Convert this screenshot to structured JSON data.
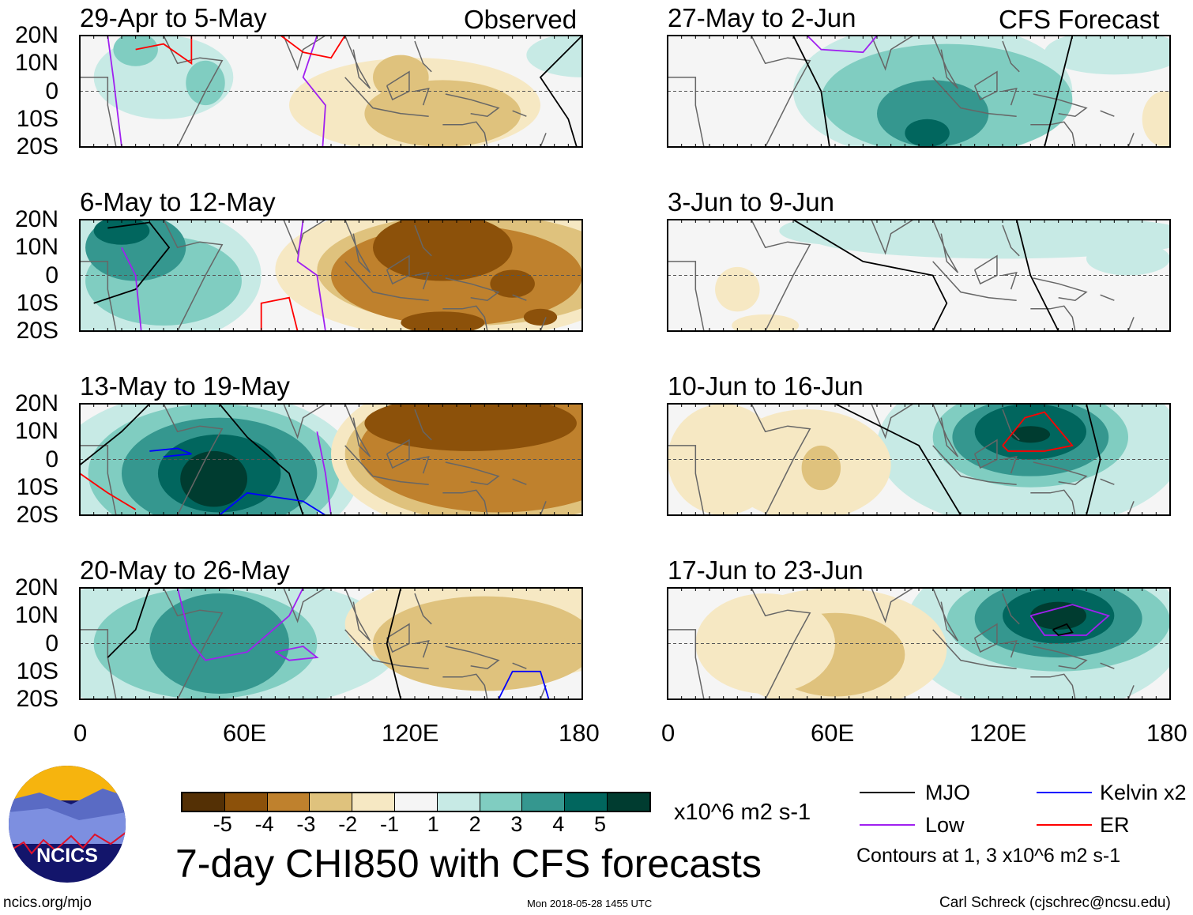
{
  "headers": {
    "left": "Observed",
    "right": "CFS Forecast"
  },
  "panels": {
    "left": [
      "29-Apr to 5-May",
      "6-May to 12-May",
      "13-May to 19-May",
      "20-May to 26-May"
    ],
    "right": [
      "27-May to 2-Jun",
      "3-Jun to 9-Jun",
      "10-Jun to 16-Jun",
      "17-Jun to 23-Jun"
    ]
  },
  "lat_labels": [
    "20N",
    "10N",
    "0",
    "10S",
    "20S"
  ],
  "lon_labels": [
    "0",
    "60E",
    "120E",
    "180"
  ],
  "colorbar": {
    "colors": [
      "#543005",
      "#8c510a",
      "#bf812d",
      "#dfc27d",
      "#f6e8c3",
      "#f5f5f5",
      "#c7eae5",
      "#80cdc1",
      "#35978f",
      "#01665e",
      "#003c30"
    ],
    "labels": [
      "-5",
      "-4",
      "-3",
      "-2",
      "-1",
      "1",
      "2",
      "3",
      "4",
      "5"
    ],
    "units": "x10^6 m2 s-1"
  },
  "title": "7-day CHI850 with CFS forecasts",
  "legend": {
    "items": [
      {
        "label": "MJO",
        "color": "#000000"
      },
      {
        "label": "Kelvin x2",
        "color": "#0000ff"
      },
      {
        "label": "Low",
        "color": "#a020f0"
      },
      {
        "label": "ER",
        "color": "#ff0000"
      }
    ],
    "note": "Contours at 1, 3 x10^6 m2 s-1"
  },
  "logo": {
    "text": "NCICS"
  },
  "footer": {
    "url": "ncics.org/mjo",
    "timestamp": "Mon 2018-05-28 1455 UTC",
    "author": "Carl Schreck (cjschrec@ncsu.edu)"
  }
}
